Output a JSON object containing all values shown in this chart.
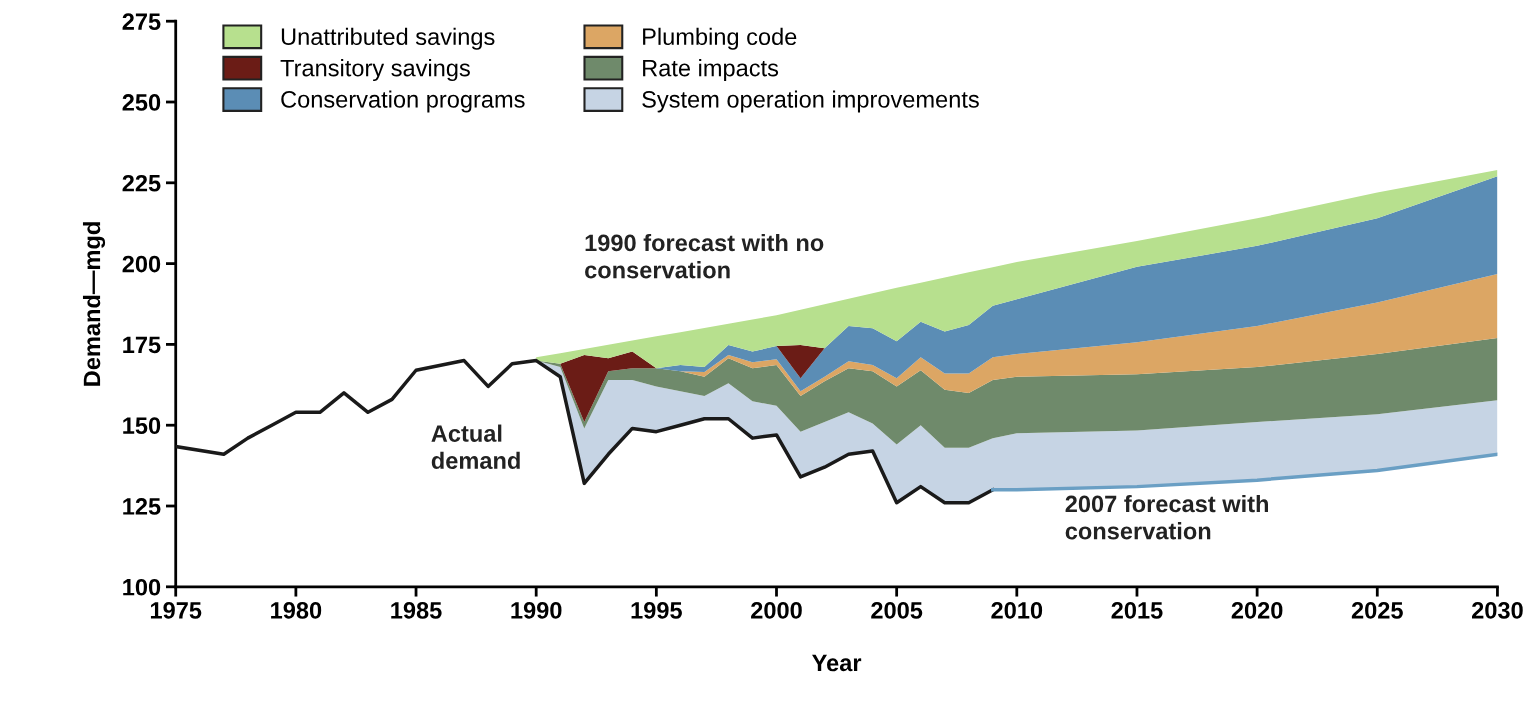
{
  "chart_data": {
    "type": "area",
    "xlabel": "Year",
    "ylabel": "Demand—mgd",
    "annotations": [
      "1990 forecast with no\nconservation",
      {
        "text": "2007 forecast with\nconservation",
        "x": 2015,
        "y": 131
      }
    ],
    "x": [
      1990,
      1991,
      1992,
      1993,
      1994,
      1995,
      1996,
      1997,
      1998,
      1999,
      2000,
      2001,
      2002,
      2003,
      2004,
      2005,
      2006,
      2007,
      2008,
      2009,
      2010,
      2015,
      2020,
      2025,
      2030
    ],
    "series": [
      {
        "name": "Actual\ndemand",
        "type": "line",
        "color": "#1a1a1a",
        "x": [
          1975,
          1977,
          1978,
          1979,
          1980,
          1981,
          1982,
          1983,
          1984,
          1985,
          1987,
          1988,
          1989,
          1990,
          1991,
          1992,
          1993,
          1994,
          1995,
          1996,
          1997,
          1998,
          1999,
          2000,
          2001,
          2002,
          2003,
          2004,
          2005,
          2006,
          2007,
          2008,
          2009
        ],
        "values": [
          143.4,
          141,
          146,
          150,
          154,
          154,
          160,
          154,
          158,
          167,
          170,
          162,
          169,
          170,
          165,
          132,
          141,
          149,
          148,
          150,
          152,
          152,
          146,
          147,
          134,
          137,
          141,
          142,
          126,
          131,
          126,
          126,
          130
        ]
      },
      {
        "type": "line",
        "color": "#6a9fc4",
        "x": [
          2009,
          2010,
          2015,
          2020,
          2025,
          2030
        ],
        "values": [
          130,
          130,
          131,
          133,
          136,
          141
        ]
      },
      {
        "name": "System operation improvements",
        "color": "#c6d4e4",
        "values": [
          170,
          168,
          149,
          164,
          164,
          162,
          160.5,
          159,
          163,
          157.4,
          156,
          148,
          151,
          154,
          150.5,
          144,
          150,
          143,
          143,
          146,
          147.5,
          148.4,
          151,
          153.4,
          157.7
        ]
      },
      {
        "name": "Rate impacts",
        "color": "#6f8a6b",
        "values": [
          170,
          169,
          151,
          166.7,
          167.6,
          167.6,
          166.7,
          165,
          170.7,
          167.6,
          168.6,
          159,
          163.6,
          167.6,
          166.7,
          162,
          167,
          161,
          160,
          164,
          165,
          165.8,
          168,
          172,
          177
        ]
      },
      {
        "name": "Plumbing code",
        "color": "#dca664",
        "values": [
          null,
          null,
          null,
          null,
          null,
          null,
          166.7,
          166.5,
          171.7,
          169.5,
          170.4,
          160.5,
          165,
          169.8,
          168.6,
          164.5,
          171,
          166,
          166,
          171,
          172,
          175.7,
          180.7,
          188,
          196.8
        ]
      },
      {
        "name": "Conservation programs",
        "color": "#5b8db5",
        "values": [
          null,
          null,
          null,
          null,
          null,
          167.6,
          168.6,
          168,
          174.8,
          172.8,
          174.5,
          164.5,
          173.8,
          180.7,
          180,
          176,
          182,
          179,
          181,
          187,
          189,
          199,
          205.5,
          214,
          227
        ]
      },
      {
        "name": "Transitory savings",
        "color": "#6b1c16",
        "values": [
          null,
          169,
          171.7,
          170.7,
          172.8,
          167.6,
          null,
          null,
          null,
          null,
          174.5,
          174.8,
          173.8,
          null,
          null,
          null,
          null,
          null,
          null,
          null,
          null,
          null,
          null,
          null,
          null
        ]
      },
      {
        "name": "Unattributed savings",
        "color": "#b7e08e",
        "values": [
          171,
          172.3,
          173.6,
          174.9,
          176.2,
          177.5,
          178.8,
          180.1,
          181.4,
          182.7,
          184,
          185.7,
          187.4,
          189.1,
          190.8,
          192.5,
          194.1,
          195.7,
          197.3,
          198.9,
          200.5,
          207,
          214,
          222,
          229
        ]
      }
    ],
    "xlim": [
      1975,
      2030
    ],
    "ylim": [
      100,
      275
    ],
    "xticks": [
      1975,
      1980,
      1985,
      1990,
      1995,
      2000,
      2005,
      2010,
      2015,
      2020,
      2025,
      2030
    ],
    "yticks": [
      100,
      125,
      150,
      175,
      200,
      225,
      250,
      275
    ],
    "grid": false,
    "legend": "top left"
  }
}
